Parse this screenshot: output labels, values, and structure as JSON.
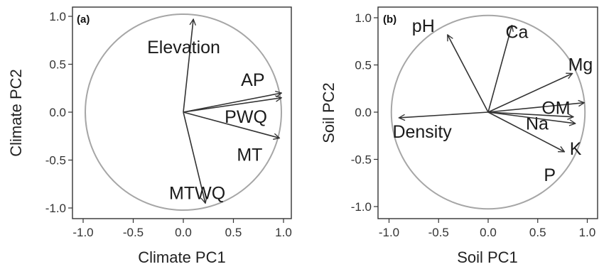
{
  "chart_data": [
    {
      "type": "scatter",
      "subtype": "biplot-loading-arrows",
      "panel_label": "(a)",
      "xlabel": "Climate PC1",
      "ylabel": "Climate PC2",
      "xlim": [
        -1.1,
        1.05
      ],
      "ylim": [
        -1.1,
        1.07
      ],
      "xticks": [
        "-1.0",
        "-0.5",
        "0.0",
        "0.5",
        "1.0"
      ],
      "yticks": [
        "-1.0",
        "-0.5",
        "0.0",
        "0.5",
        "1.0"
      ],
      "unit_circle": true,
      "grid": false,
      "vectors": [
        {
          "name": "Elevation",
          "x": 0.1,
          "y": 0.97
        },
        {
          "name": "AP",
          "x": 0.98,
          "y": 0.2
        },
        {
          "name": "PWQ",
          "x": 0.98,
          "y": 0.15
        },
        {
          "name": "MT",
          "x": 0.96,
          "y": -0.27
        },
        {
          "name": "MTWQ",
          "x": 0.22,
          "y": -0.95
        }
      ]
    },
    {
      "type": "scatter",
      "subtype": "biplot-loading-arrows",
      "panel_label": "(b)",
      "xlabel": "Soil PC1",
      "ylabel": "Soil PC2",
      "xlim": [
        -1.1,
        1.05
      ],
      "ylim": [
        -1.1,
        1.07
      ],
      "xticks": [
        "-1.0",
        "-0.5",
        "0.0",
        "0.5",
        "1.0"
      ],
      "yticks": [
        "-1.0",
        "-0.5",
        "0.0",
        "0.5",
        "1.0"
      ],
      "unit_circle": true,
      "grid": false,
      "vectors": [
        {
          "name": "pH",
          "x": -0.41,
          "y": 0.82
        },
        {
          "name": "Ca",
          "x": 0.24,
          "y": 0.92
        },
        {
          "name": "Mg",
          "x": 0.85,
          "y": 0.41
        },
        {
          "name": "OM",
          "x": 0.97,
          "y": 0.1
        },
        {
          "name": "Na",
          "x": 0.86,
          "y": -0.05
        },
        {
          "name": "K",
          "x": 0.88,
          "y": -0.12
        },
        {
          "name": "P",
          "x": 0.77,
          "y": -0.42
        },
        {
          "name": "Density",
          "x": -0.9,
          "y": -0.06
        }
      ]
    }
  ]
}
